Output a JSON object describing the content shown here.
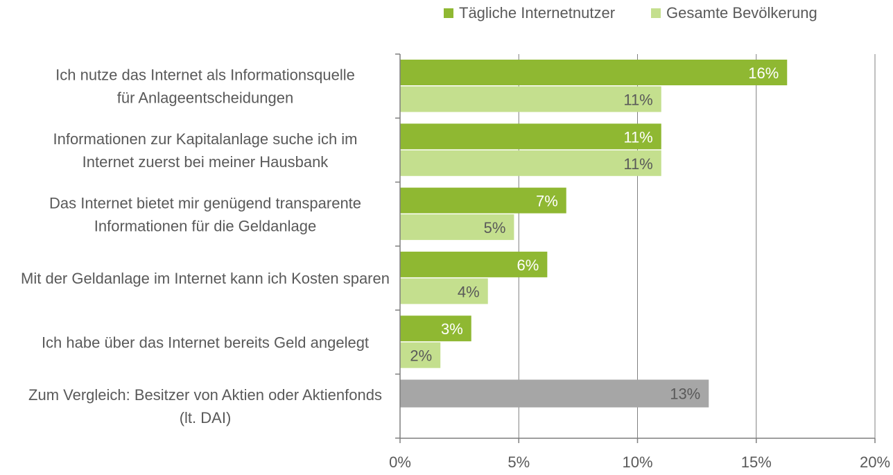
{
  "chart_data": {
    "type": "bar",
    "orientation": "horizontal",
    "categories": [
      [
        "Ich nutze das Internet als Informationsquelle",
        "für Anlageentscheidungen"
      ],
      [
        "Informationen zur Kapitalanlage suche ich im",
        "Internet zuerst bei meiner Hausbank"
      ],
      [
        "Das Internet bietet mir genügend transparente",
        "Informationen für die Geldanlage"
      ],
      [
        "Mit der Geldanlage im Internet kann ich Kosten sparen"
      ],
      [
        "Ich habe über das Internet bereits Geld angelegt"
      ],
      [
        "Zum Vergleich: Besitzer von Aktien oder Aktienfonds",
        "(lt. DAI)"
      ]
    ],
    "series": [
      {
        "name": "Tägliche Internetnutzer",
        "color": "#8fb832",
        "values": [
          16.3,
          11.0,
          7.0,
          6.2,
          3.0,
          null
        ],
        "labels": [
          "16%",
          "11%",
          "7%",
          "6%",
          "3%",
          ""
        ]
      },
      {
        "name": "Gesamte Bevölkerung",
        "color": "#c4df8e",
        "values": [
          11.0,
          11.0,
          4.8,
          3.7,
          1.7,
          null
        ],
        "labels": [
          "11%",
          "11%",
          "5%",
          "4%",
          "2%",
          ""
        ]
      }
    ],
    "comparison": {
      "value": 13.0,
      "label": "13%",
      "color": "#a6a6a6"
    },
    "xlim": [
      0,
      20
    ],
    "xticks": [
      0,
      5,
      10,
      15,
      20
    ],
    "xtick_labels": [
      "0%",
      "5%",
      "10%",
      "15%",
      "20%"
    ],
    "grid": true,
    "legend_position": "top-right",
    "title": "",
    "xlabel": "",
    "ylabel": ""
  }
}
